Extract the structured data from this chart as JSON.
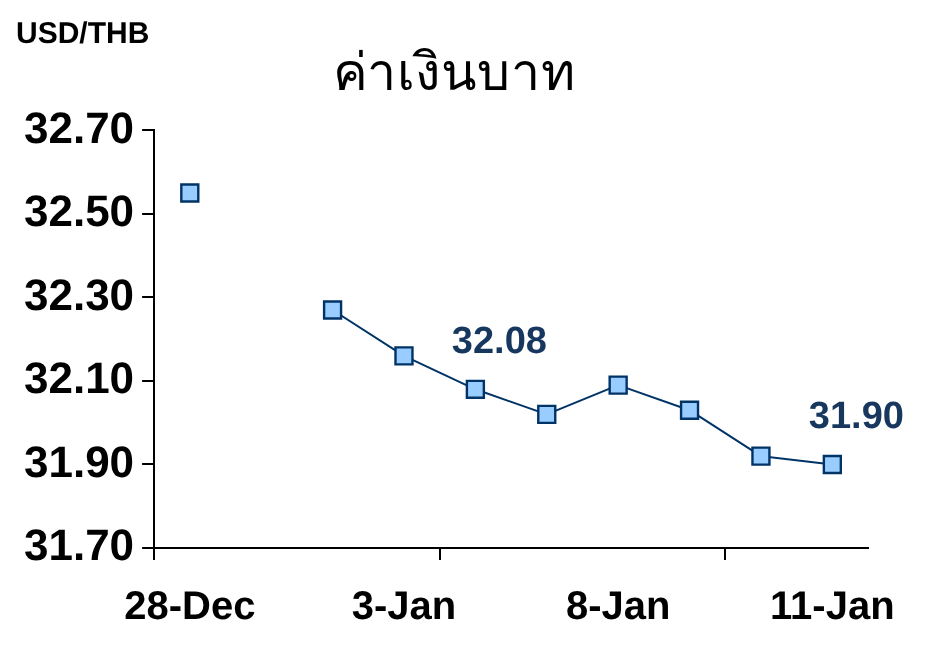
{
  "chart_data": {
    "type": "line",
    "title": "ค่าเงินบาท",
    "ylabel": "USD/THB",
    "categories": [
      "28-Dec",
      null,
      null,
      "3-Jan",
      null,
      null,
      "8-Jan",
      null,
      null,
      "11-Jan"
    ],
    "series": [
      {
        "color": "#003366",
        "values": [
          32.55,
          null,
          32.27,
          32.16,
          32.08,
          32.02,
          32.09,
          32.03,
          31.92,
          31.9
        ],
        "value_labels": [
          null,
          null,
          null,
          null,
          "32.08",
          null,
          null,
          null,
          null,
          "31.90"
        ]
      }
    ],
    "ylim": [
      31.7,
      32.7
    ],
    "yticks": [
      {
        "value": 31.7,
        "label": "31.70"
      },
      {
        "value": 31.9,
        "label": "31.90"
      },
      {
        "value": 32.1,
        "label": "32.10"
      },
      {
        "value": 32.3,
        "label": "32.30"
      },
      {
        "value": 32.5,
        "label": "32.50"
      },
      {
        "value": 32.7,
        "label": "32.70"
      }
    ],
    "grid": false,
    "legend": false,
    "marker": "square",
    "line_style": "solid"
  }
}
